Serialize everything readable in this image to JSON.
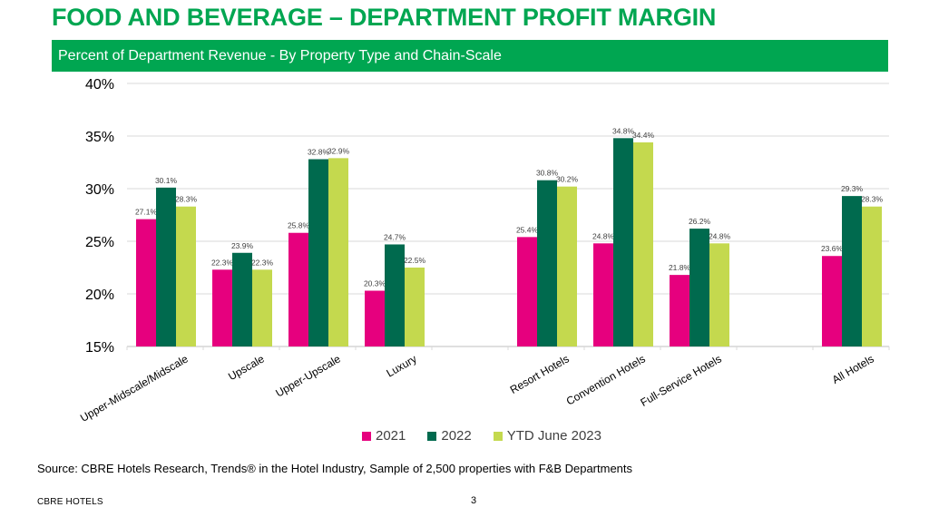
{
  "slide": {
    "title": "FOOD AND BEVERAGE – DEPARTMENT PROFIT MARGIN",
    "subtitle": "Percent of Department Revenue - By Property Type and Chain-Scale",
    "source": "Source: CBRE Hotels Research, Trends® in the Hotel Industry, Sample of 2,500 properties with F&B Departments",
    "footer_brand": "CBRE HOTELS",
    "page_number": "3",
    "colors": {
      "title": "#00A651",
      "banner": "#00A651"
    }
  },
  "chart_data": {
    "type": "bar",
    "title": "Percent of Department Revenue - By Property Type and Chain-Scale",
    "xlabel": "",
    "ylabel": "",
    "ylim": [
      15,
      40
    ],
    "yticks": [
      15,
      20,
      25,
      30,
      35,
      40
    ],
    "ytick_labels": [
      "15%",
      "20%",
      "25%",
      "30%",
      "35%",
      "40%"
    ],
    "grid": true,
    "legend_position": "bottom",
    "categories": [
      "Upper-Midscale/Midscale",
      "Upscale",
      "Upper-Upscale",
      "Luxury",
      "",
      "Resort Hotels",
      "Convention Hotels",
      "Full-Service Hotels",
      "",
      "All Hotels"
    ],
    "series": [
      {
        "name": "2021",
        "color": "#E6007E",
        "values": [
          27.1,
          22.3,
          25.8,
          20.3,
          null,
          25.4,
          24.8,
          21.8,
          null,
          23.6
        ]
      },
      {
        "name": "2022",
        "color": "#006A4E",
        "values": [
          30.1,
          23.9,
          32.8,
          24.7,
          null,
          30.8,
          34.8,
          26.2,
          null,
          29.3
        ]
      },
      {
        "name": "YTD June 2023",
        "color": "#C4D94E",
        "values": [
          28.3,
          22.3,
          32.9,
          22.5,
          null,
          30.2,
          34.4,
          24.8,
          null,
          28.3
        ]
      }
    ],
    "data_label_suffix": "%"
  }
}
